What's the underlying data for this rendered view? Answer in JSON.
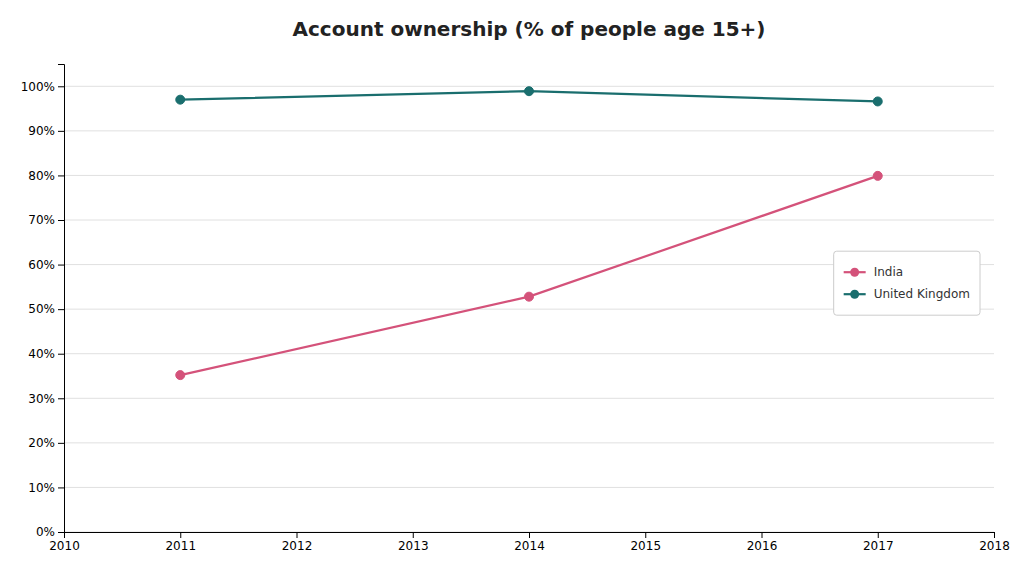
{
  "chart_data": {
    "type": "line",
    "title": "Account ownership (% of people age 15+)",
    "x": [
      2011,
      2014,
      2017
    ],
    "series": [
      {
        "name": "India",
        "color": "#d4527a",
        "marker": "circle",
        "values": [
          35.2,
          52.8,
          79.9
        ]
      },
      {
        "name": "United Kingdom",
        "color": "#1a6e6e",
        "marker": "circle",
        "values": [
          97.0,
          98.9,
          96.6
        ]
      }
    ],
    "xlim": [
      2010,
      2018
    ],
    "xticks": [
      2010,
      2011,
      2012,
      2013,
      2014,
      2015,
      2016,
      2017,
      2018
    ],
    "ylim": [
      0,
      105
    ],
    "yticks": [
      {
        "value": 0,
        "label": "0%"
      },
      {
        "value": 10,
        "label": "10%"
      },
      {
        "value": 20,
        "label": "20%"
      },
      {
        "value": 30,
        "label": "30%"
      },
      {
        "value": 40,
        "label": "40%"
      },
      {
        "value": 50,
        "label": "50%"
      },
      {
        "value": 60,
        "label": "60%"
      },
      {
        "value": 70,
        "label": "70%"
      },
      {
        "value": 80,
        "label": "80%"
      },
      {
        "value": 90,
        "label": "90%"
      },
      {
        "value": 100,
        "label": "100%"
      }
    ],
    "grid": true,
    "legend": "right"
  }
}
